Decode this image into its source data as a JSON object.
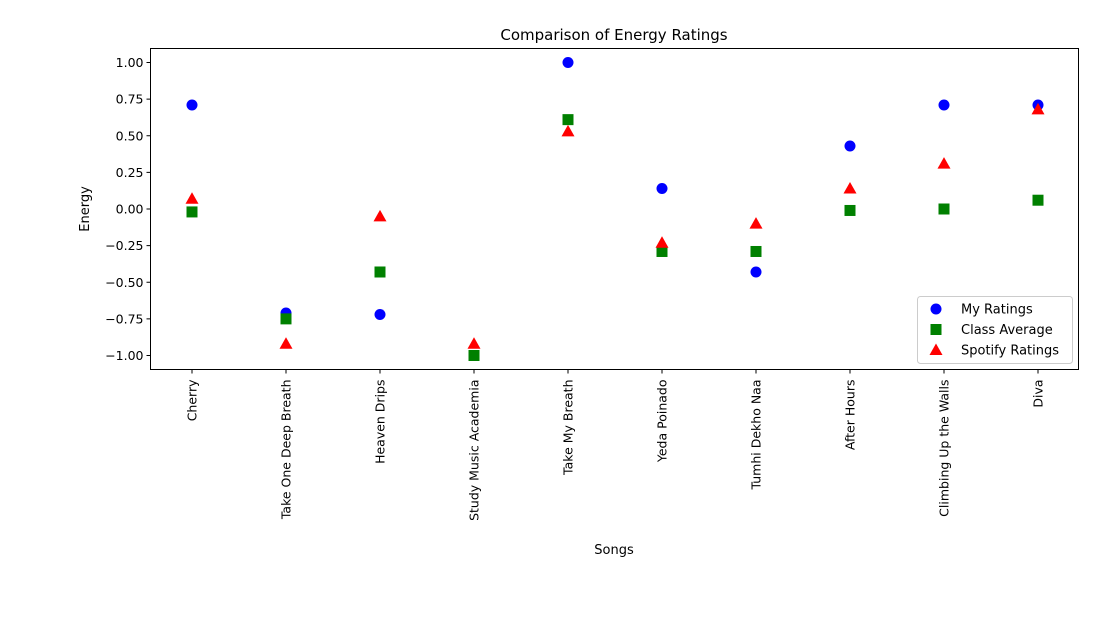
{
  "chart_data": {
    "type": "scatter",
    "title": "Comparison of Energy Ratings",
    "xlabel": "Songs",
    "ylabel": "Energy",
    "categories": [
      "Cherry",
      "Take One Deep Breath",
      "Heaven Drips",
      "Study Music Academia",
      "Take My Breath",
      "Yeda Poinado",
      "Tumhi Dekho Naa",
      "After Hours",
      "Climbing Up the Walls",
      "Diva"
    ],
    "ylim": [
      -1.1,
      1.1
    ],
    "yticks": [
      -1.0,
      -0.75,
      -0.5,
      -0.25,
      0.0,
      0.25,
      0.5,
      0.75,
      1.0
    ],
    "ytick_labels": [
      "−1.00",
      "−0.75",
      "−0.50",
      "−0.25",
      "0.00",
      "0.25",
      "0.50",
      "0.75",
      "1.00"
    ],
    "grid": false,
    "legend_position": "lower-right",
    "series": [
      {
        "name": "My Ratings",
        "marker": "circle",
        "color": "#0000ff",
        "values": [
          0.71,
          -0.71,
          -0.72,
          -1.0,
          1.0,
          0.14,
          -0.43,
          0.43,
          0.71,
          0.71
        ]
      },
      {
        "name": "Class Average",
        "marker": "square",
        "color": "#008000",
        "values": [
          -0.02,
          -0.75,
          -0.43,
          -1.0,
          0.61,
          -0.29,
          -0.29,
          -0.01,
          0.0,
          0.06
        ]
      },
      {
        "name": "Spotify Ratings",
        "marker": "triangle",
        "color": "#ff0000",
        "values": [
          0.07,
          -0.92,
          -0.05,
          -0.92,
          0.53,
          -0.23,
          -0.1,
          0.14,
          0.31,
          0.68
        ]
      }
    ]
  }
}
